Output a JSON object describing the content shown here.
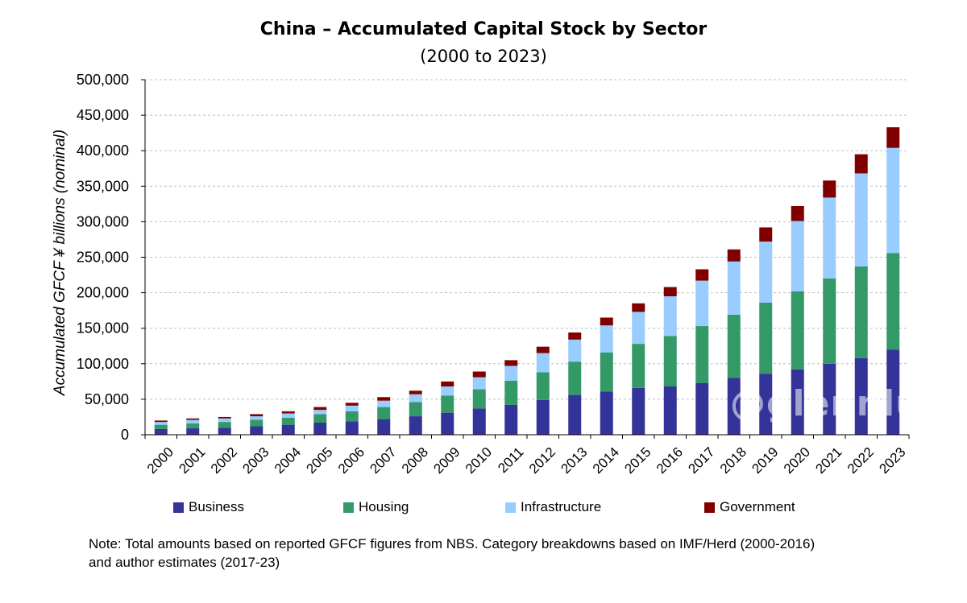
{
  "colors": {
    "business": "#333399",
    "housing": "#339966",
    "infrastructure": "#99ccff",
    "government": "#800000",
    "grid": "#bfbfbf"
  },
  "chart_data": {
    "type": "bar",
    "stacked": true,
    "title": "China – Accumulated Capital Stock by Sector",
    "subtitle": "(2000 to 2023)",
    "xlabel": "",
    "ylabel": "Accumulated GFCF ¥ billions (nominal)",
    "ylim": [
      0,
      500000
    ],
    "yticks": [
      0,
      50000,
      100000,
      150000,
      200000,
      250000,
      300000,
      350000,
      400000,
      450000,
      500000
    ],
    "ytick_labels": [
      "0",
      "50,000",
      "100,000",
      "150,000",
      "200,000",
      "250,000",
      "300,000",
      "350,000",
      "400,000",
      "450,000",
      "500,000"
    ],
    "grid": true,
    "legend_position": "bottom",
    "categories": [
      "2000",
      "2001",
      "2002",
      "2003",
      "2004",
      "2005",
      "2006",
      "2007",
      "2008",
      "2009",
      "2010",
      "2011",
      "2012",
      "2013",
      "2014",
      "2015",
      "2016",
      "2017",
      "2018",
      "2019",
      "2020",
      "2021",
      "2022",
      "2023"
    ],
    "series": [
      {
        "name": "Business",
        "color_key": "business",
        "values": [
          8000,
          9000,
          10000,
          12000,
          14000,
          17000,
          19000,
          22000,
          26000,
          31000,
          37000,
          42000,
          49000,
          56000,
          61000,
          66000,
          68000,
          73000,
          80000,
          86000,
          92000,
          100000,
          108000,
          120000
        ]
      },
      {
        "name": "Housing",
        "color_key": "housing",
        "values": [
          6000,
          7000,
          8000,
          9000,
          10000,
          12000,
          14000,
          17000,
          20000,
          24000,
          27000,
          34000,
          39000,
          47000,
          55000,
          62000,
          71000,
          80000,
          89000,
          100000,
          110000,
          120000,
          129000,
          136000
        ]
      },
      {
        "name": "Infrastructure",
        "color_key": "infrastructure",
        "values": [
          4000,
          5000,
          5000,
          5000,
          6000,
          6000,
          8000,
          9000,
          11000,
          13000,
          17000,
          21000,
          27000,
          31000,
          38000,
          45000,
          56000,
          64000,
          75000,
          86000,
          99000,
          114000,
          131000,
          148000
        ]
      },
      {
        "name": "Government",
        "color_key": "government",
        "values": [
          2000,
          2000,
          2000,
          3000,
          3000,
          4000,
          4000,
          5000,
          5000,
          7000,
          8000,
          8000,
          9000,
          10000,
          11000,
          12000,
          13000,
          16000,
          17000,
          20000,
          21000,
          24000,
          27000,
          29000
        ]
      }
    ]
  },
  "watermark": "@glennluk",
  "note": {
    "line1": "Note: Total amounts based on reported GFCF figures from NBS. Category breakdowns based on IMF/Herd (2000-2016)",
    "line2": "and author estimates (2017-23)"
  }
}
